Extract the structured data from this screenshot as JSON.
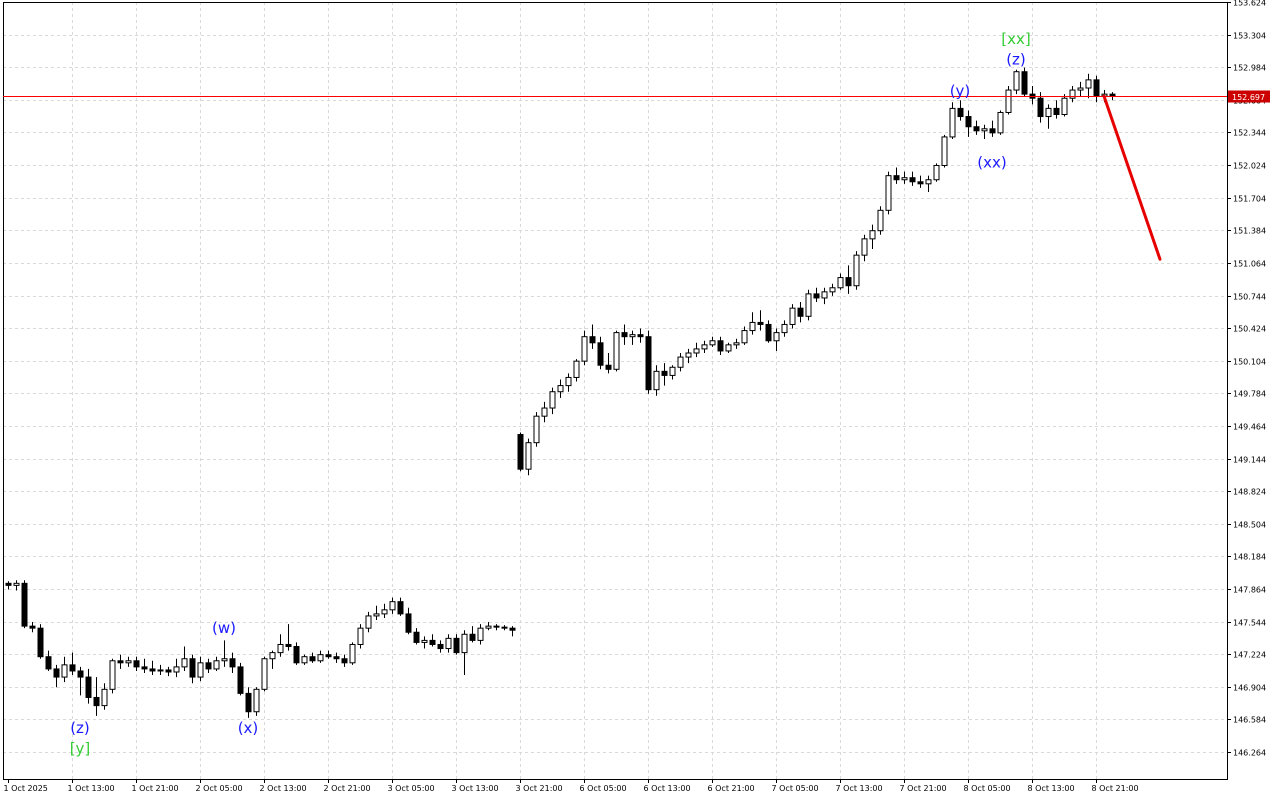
{
  "chart_data": {
    "type": "candlestick",
    "timeframe_note": "hourly bars",
    "grid": true,
    "ylim": [
      146.0,
      153.624
    ],
    "y_ticks": [
      "153.624",
      "153.304",
      "152.984",
      "152.664",
      "152.344",
      "152.024",
      "151.704",
      "151.384",
      "151.064",
      "150.744",
      "150.424",
      "150.104",
      "149.784",
      "149.464",
      "149.144",
      "148.824",
      "148.504",
      "148.184",
      "147.864",
      "147.544",
      "147.224",
      "146.904",
      "146.584",
      "146.264"
    ],
    "x_ticks": [
      {
        "label": "1 Oct 2025",
        "bar": 0
      },
      {
        "label": "1 Oct 13:00",
        "bar": 8
      },
      {
        "label": "1 Oct 21:00",
        "bar": 16
      },
      {
        "label": "2 Oct 05:00",
        "bar": 24
      },
      {
        "label": "2 Oct 13:00",
        "bar": 32
      },
      {
        "label": "2 Oct 21:00",
        "bar": 40
      },
      {
        "label": "3 Oct 05:00",
        "bar": 48
      },
      {
        "label": "3 Oct 13:00",
        "bar": 56
      },
      {
        "label": "3 Oct 21:00",
        "bar": 64
      },
      {
        "label": "6 Oct 05:00",
        "bar": 72
      },
      {
        "label": "6 Oct 13:00",
        "bar": 80
      },
      {
        "label": "6 Oct 21:00",
        "bar": 88
      },
      {
        "label": "7 Oct 05:00",
        "bar": 96
      },
      {
        "label": "7 Oct 13:00",
        "bar": 104
      },
      {
        "label": "7 Oct 21:00",
        "bar": 112
      },
      {
        "label": "8 Oct 05:00",
        "bar": 120
      },
      {
        "label": "8 Oct 13:00",
        "bar": 128
      },
      {
        "label": "8 Oct 21:00",
        "bar": 136
      }
    ],
    "price_line": {
      "value": 152.697,
      "label": "152.697",
      "color": "#ff0000"
    },
    "forecast": {
      "from_bar": 137,
      "from_value": 152.7,
      "to_bar": 144,
      "to_value": 151.1,
      "color": "#e60000"
    },
    "wave_labels": [
      {
        "text": "(z)",
        "bar": 9,
        "value": 146.5,
        "color": "#1a1aff"
      },
      {
        "text": "[y]",
        "bar": 9,
        "value": 146.3,
        "color": "#33cc33"
      },
      {
        "text": "(w)",
        "bar": 27,
        "value": 147.48,
        "color": "#1a1aff"
      },
      {
        "text": "(x)",
        "bar": 30,
        "value": 146.5,
        "color": "#1a1aff"
      },
      {
        "text": "(y)",
        "bar": 119,
        "value": 152.75,
        "color": "#1a1aff"
      },
      {
        "text": "(xx)",
        "bar": 123,
        "value": 152.05,
        "color": "#1a1aff"
      },
      {
        "text": "(z)",
        "bar": 126,
        "value": 153.06,
        "color": "#1a1aff"
      },
      {
        "text": "[xx]",
        "bar": 126,
        "value": 153.26,
        "color": "#33cc33"
      }
    ],
    "candles": [
      [
        147.92,
        147.94,
        147.86,
        147.9
      ],
      [
        147.9,
        147.95,
        147.85,
        147.92
      ],
      [
        147.92,
        147.95,
        147.48,
        147.5
      ],
      [
        147.5,
        147.54,
        147.44,
        147.48
      ],
      [
        147.48,
        147.52,
        147.18,
        147.2
      ],
      [
        147.2,
        147.26,
        147.06,
        147.08
      ],
      [
        147.08,
        147.12,
        146.9,
        147.0
      ],
      [
        147.0,
        147.2,
        146.95,
        147.12
      ],
      [
        147.12,
        147.24,
        147.02,
        147.06
      ],
      [
        147.06,
        147.1,
        146.82,
        147.0
      ],
      [
        147.0,
        147.08,
        146.74,
        146.8
      ],
      [
        146.8,
        147.0,
        146.62,
        146.72
      ],
      [
        146.72,
        146.94,
        146.68,
        146.88
      ],
      [
        146.88,
        147.18,
        146.84,
        147.16
      ],
      [
        147.16,
        147.22,
        147.08,
        147.14
      ],
      [
        147.14,
        147.2,
        147.1,
        147.16
      ],
      [
        147.16,
        147.2,
        147.06,
        147.1
      ],
      [
        147.1,
        147.18,
        147.04,
        147.08
      ],
      [
        147.08,
        147.16,
        147.02,
        147.06
      ],
      [
        147.06,
        147.12,
        147.02,
        147.07
      ],
      [
        147.07,
        147.1,
        147.01,
        147.05
      ],
      [
        147.05,
        147.18,
        147.0,
        147.1
      ],
      [
        147.1,
        147.3,
        147.06,
        147.18
      ],
      [
        147.18,
        147.22,
        146.94,
        147.0
      ],
      [
        147.0,
        147.2,
        146.96,
        147.14
      ],
      [
        147.14,
        147.18,
        147.04,
        147.08
      ],
      [
        147.08,
        147.2,
        147.06,
        147.16
      ],
      [
        147.16,
        147.36,
        147.1,
        147.18
      ],
      [
        147.18,
        147.24,
        147.04,
        147.1
      ],
      [
        147.1,
        147.14,
        146.82,
        146.84
      ],
      [
        146.84,
        146.9,
        146.6,
        146.66
      ],
      [
        146.66,
        146.9,
        146.62,
        146.88
      ],
      [
        146.88,
        147.2,
        146.86,
        147.18
      ],
      [
        147.18,
        147.26,
        147.08,
        147.24
      ],
      [
        147.24,
        147.42,
        147.2,
        147.32
      ],
      [
        147.32,
        147.52,
        147.26,
        147.3
      ],
      [
        147.3,
        147.34,
        147.12,
        147.14
      ],
      [
        147.14,
        147.22,
        147.12,
        147.2
      ],
      [
        147.2,
        147.24,
        147.14,
        147.16
      ],
      [
        147.16,
        147.26,
        147.14,
        147.22
      ],
      [
        147.22,
        147.26,
        147.18,
        147.2
      ],
      [
        147.2,
        147.24,
        147.14,
        147.18
      ],
      [
        147.18,
        147.22,
        147.1,
        147.14
      ],
      [
        147.14,
        147.34,
        147.12,
        147.32
      ],
      [
        147.32,
        147.52,
        147.28,
        147.48
      ],
      [
        147.48,
        147.64,
        147.44,
        147.6
      ],
      [
        147.6,
        147.7,
        147.56,
        147.62
      ],
      [
        147.62,
        147.72,
        147.58,
        147.66
      ],
      [
        147.66,
        147.78,
        147.62,
        147.74
      ],
      [
        147.74,
        147.78,
        147.6,
        147.62
      ],
      [
        147.62,
        147.68,
        147.42,
        147.44
      ],
      [
        147.44,
        147.48,
        147.32,
        147.34
      ],
      [
        147.34,
        147.4,
        147.28,
        147.36
      ],
      [
        147.36,
        147.42,
        147.3,
        147.32
      ],
      [
        147.32,
        147.36,
        147.24,
        147.28
      ],
      [
        147.28,
        147.42,
        147.24,
        147.38
      ],
      [
        147.38,
        147.42,
        147.22,
        147.24
      ],
      [
        147.24,
        147.46,
        147.02,
        147.42
      ],
      [
        147.42,
        147.5,
        147.34,
        147.36
      ],
      [
        147.36,
        147.52,
        147.32,
        147.48
      ],
      [
        147.48,
        147.54,
        147.46,
        147.5
      ],
      [
        147.5,
        147.52,
        147.46,
        147.49
      ],
      [
        147.49,
        147.51,
        147.46,
        147.48
      ],
      [
        147.48,
        147.5,
        147.4,
        147.46
      ],
      [
        149.38,
        149.4,
        149.02,
        149.04
      ],
      [
        149.04,
        149.34,
        148.98,
        149.3
      ],
      [
        149.3,
        149.6,
        149.26,
        149.56
      ],
      [
        149.56,
        149.7,
        149.5,
        149.64
      ],
      [
        149.64,
        149.84,
        149.58,
        149.8
      ],
      [
        149.8,
        149.92,
        149.74,
        149.86
      ],
      [
        149.86,
        149.98,
        149.8,
        149.94
      ],
      [
        149.94,
        150.12,
        149.9,
        150.1
      ],
      [
        150.1,
        150.4,
        150.06,
        150.34
      ],
      [
        150.34,
        150.46,
        150.22,
        150.28
      ],
      [
        150.28,
        150.34,
        150.02,
        150.06
      ],
      [
        150.06,
        150.18,
        149.98,
        150.02
      ],
      [
        150.02,
        150.4,
        150.0,
        150.38
      ],
      [
        150.38,
        150.46,
        150.26,
        150.34
      ],
      [
        150.34,
        150.4,
        150.26,
        150.36
      ],
      [
        150.36,
        150.42,
        150.28,
        150.34
      ],
      [
        150.34,
        150.4,
        149.78,
        149.82
      ],
      [
        149.82,
        150.06,
        149.76,
        150.0
      ],
      [
        150.0,
        150.08,
        149.86,
        149.96
      ],
      [
        149.96,
        150.06,
        149.92,
        150.04
      ],
      [
        150.04,
        150.18,
        150.0,
        150.14
      ],
      [
        150.14,
        150.22,
        150.08,
        150.18
      ],
      [
        150.18,
        150.28,
        150.14,
        150.22
      ],
      [
        150.22,
        150.3,
        150.18,
        150.26
      ],
      [
        150.26,
        150.34,
        150.24,
        150.3
      ],
      [
        150.3,
        150.34,
        150.16,
        150.2
      ],
      [
        150.2,
        150.28,
        150.18,
        150.26
      ],
      [
        150.26,
        150.32,
        150.22,
        150.28
      ],
      [
        150.28,
        150.44,
        150.26,
        150.4
      ],
      [
        150.4,
        150.58,
        150.36,
        150.48
      ],
      [
        150.48,
        150.6,
        150.4,
        150.46
      ],
      [
        150.46,
        150.5,
        150.28,
        150.3
      ],
      [
        150.3,
        150.42,
        150.2,
        150.38
      ],
      [
        150.38,
        150.5,
        150.34,
        150.46
      ],
      [
        150.46,
        150.66,
        150.42,
        150.62
      ],
      [
        150.62,
        150.68,
        150.48,
        150.54
      ],
      [
        150.54,
        150.8,
        150.5,
        150.76
      ],
      [
        150.76,
        150.82,
        150.68,
        150.72
      ],
      [
        150.72,
        150.82,
        150.66,
        150.78
      ],
      [
        150.78,
        150.86,
        150.74,
        150.82
      ],
      [
        150.82,
        150.96,
        150.8,
        150.92
      ],
      [
        150.92,
        151.04,
        150.76,
        150.84
      ],
      [
        150.84,
        151.18,
        150.8,
        151.14
      ],
      [
        151.14,
        151.34,
        151.08,
        151.3
      ],
      [
        151.3,
        151.44,
        151.2,
        151.38
      ],
      [
        151.38,
        151.62,
        151.34,
        151.58
      ],
      [
        151.58,
        151.96,
        151.54,
        151.92
      ],
      [
        151.92,
        152.0,
        151.84,
        151.88
      ],
      [
        151.88,
        151.96,
        151.84,
        151.9
      ],
      [
        151.9,
        151.96,
        151.82,
        151.86
      ],
      [
        151.86,
        151.92,
        151.8,
        151.84
      ],
      [
        151.84,
        151.92,
        151.76,
        151.88
      ],
      [
        151.88,
        152.04,
        151.86,
        152.02
      ],
      [
        152.02,
        152.32,
        152.0,
        152.3
      ],
      [
        152.3,
        152.64,
        152.28,
        152.58
      ],
      [
        152.58,
        152.66,
        152.46,
        152.5
      ],
      [
        152.5,
        152.56,
        152.3,
        152.4
      ],
      [
        152.4,
        152.46,
        152.32,
        152.36
      ],
      [
        152.36,
        152.42,
        152.28,
        152.38
      ],
      [
        152.38,
        152.46,
        152.3,
        152.34
      ],
      [
        152.34,
        152.56,
        152.32,
        152.54
      ],
      [
        152.54,
        152.8,
        152.52,
        152.76
      ],
      [
        152.76,
        152.96,
        152.72,
        152.94
      ],
      [
        152.94,
        152.98,
        152.7,
        152.72
      ],
      [
        152.72,
        152.8,
        152.62,
        152.68
      ],
      [
        152.68,
        152.74,
        152.44,
        152.5
      ],
      [
        152.5,
        152.62,
        152.38,
        152.58
      ],
      [
        152.58,
        152.66,
        152.48,
        152.52
      ],
      [
        152.52,
        152.72,
        152.5,
        152.68
      ],
      [
        152.68,
        152.8,
        152.64,
        152.76
      ],
      [
        152.76,
        152.84,
        152.7,
        152.78
      ],
      [
        152.78,
        152.92,
        152.68,
        152.86
      ],
      [
        152.86,
        152.9,
        152.64,
        152.7
      ],
      [
        152.7,
        152.76,
        152.64,
        152.72
      ],
      [
        152.72,
        152.74,
        152.66,
        152.7
      ]
    ]
  }
}
